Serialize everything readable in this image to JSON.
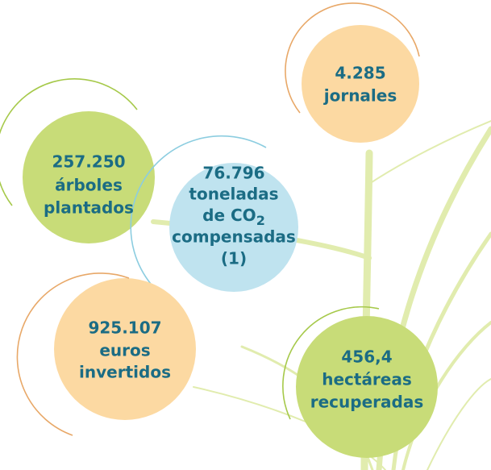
{
  "nodes": [
    {
      "lines": [
        "257.250",
        "árboles",
        "plantados"
      ]
    },
    {
      "lines": [
        "4.285",
        "jornales"
      ]
    },
    {
      "lines": [
        "76.796",
        "toneladas",
        "de CO",
        "compensadas",
        "(1)"
      ],
      "sub": "2"
    },
    {
      "lines": [
        "925.107",
        "euros",
        "invertidos"
      ]
    },
    {
      "lines": [
        "456,4",
        "hectáreas",
        "recuperadas"
      ]
    }
  ]
}
